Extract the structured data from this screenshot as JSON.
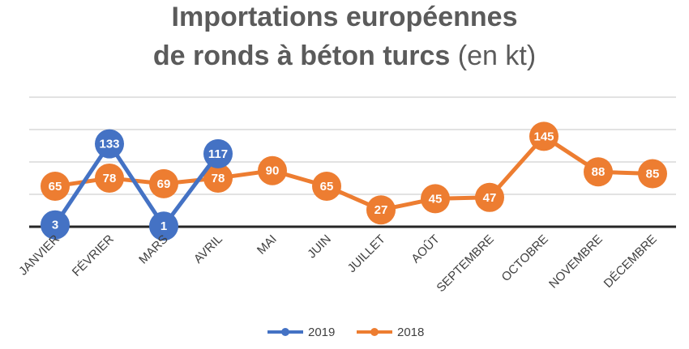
{
  "chart_data": {
    "type": "line",
    "title_line1": "Importations européennes",
    "title_line2_bold": "de ronds à béton turcs",
    "title_line2_unit": "(en kt)",
    "categories": [
      "JANVIER",
      "FÉVRIER",
      "MARS",
      "AVRIL",
      "MAI",
      "JUIN",
      "JUILLET",
      "AOÛT",
      "SEPTEMBRE",
      "OCTOBRE",
      "NOVEMBRE",
      "DÉCEMBRE"
    ],
    "series": [
      {
        "name": "2019",
        "color": "#4472c4",
        "values": [
          3,
          133,
          1,
          117,
          null,
          null,
          null,
          null,
          null,
          null,
          null,
          null
        ]
      },
      {
        "name": "2018",
        "color": "#ed7d31",
        "values": [
          65,
          78,
          69,
          78,
          90,
          65,
          27,
          45,
          47,
          145,
          88,
          85
        ]
      }
    ],
    "ylim": [
      0,
      140
    ],
    "grid": true,
    "legend_position": "bottom"
  }
}
